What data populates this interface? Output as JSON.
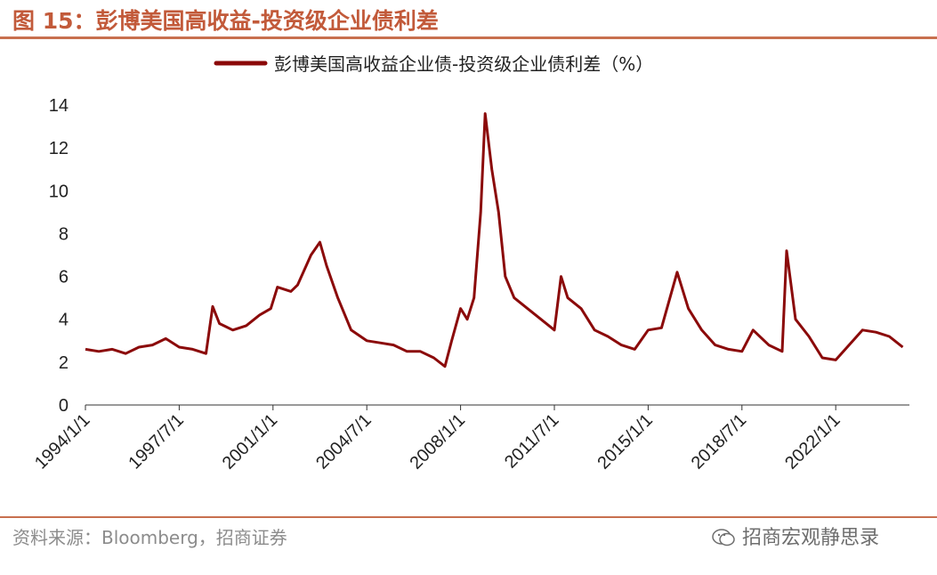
{
  "header": {
    "title": "图 15：彭博美国高收益-投资级企业债利差"
  },
  "footer": {
    "source": "资料来源：Bloomberg，招商证券",
    "watermark": "招商宏观静思录"
  },
  "colors": {
    "series": "#8b0a0a",
    "accent": "#c8704f"
  },
  "chart_data": {
    "type": "line",
    "title": "",
    "xlabel": "",
    "ylabel": "",
    "ylim": [
      0,
      14
    ],
    "yticks": [
      "0",
      "2",
      "4",
      "6",
      "8",
      "10",
      "12",
      "14"
    ],
    "xticks": [
      "1994/1/1",
      "1997/7/1",
      "2001/1/1",
      "2004/7/1",
      "2008/1/1",
      "2011/7/1",
      "2015/1/1",
      "2018/7/1",
      "2022/1/1"
    ],
    "legend_position": "top-center",
    "grid": false,
    "series": [
      {
        "name": "彭博美国高收益企业债-投资级企业债利差（%）",
        "x": [
          "1994/1",
          "1994/7",
          "1995/1",
          "1995/7",
          "1996/1",
          "1996/7",
          "1997/1",
          "1997/7",
          "1998/1",
          "1998/7",
          "1998/10",
          "1999/1",
          "1999/7",
          "2000/1",
          "2000/7",
          "2000/12",
          "2001/3",
          "2001/9",
          "2001/12",
          "2002/6",
          "2002/10",
          "2003/1",
          "2003/6",
          "2003/12",
          "2004/7",
          "2005/1",
          "2005/7",
          "2006/1",
          "2006/7",
          "2007/1",
          "2007/6",
          "2007/9",
          "2008/1",
          "2008/4",
          "2008/7",
          "2008/10",
          "2008/12",
          "2009/3",
          "2009/6",
          "2009/9",
          "2010/1",
          "2010/7",
          "2011/1",
          "2011/7",
          "2011/10",
          "2012/1",
          "2012/7",
          "2013/1",
          "2013/7",
          "2014/1",
          "2014/7",
          "2015/1",
          "2015/7",
          "2016/2",
          "2016/7",
          "2017/1",
          "2017/7",
          "2018/1",
          "2018/7",
          "2018/12",
          "2019/7",
          "2020/1",
          "2020/3",
          "2020/7",
          "2021/1",
          "2021/7",
          "2022/1",
          "2022/7",
          "2023/1",
          "2023/7",
          "2024/1",
          "2024/7"
        ],
        "values": [
          2.6,
          2.5,
          2.6,
          2.4,
          2.7,
          2.8,
          3.1,
          2.7,
          2.6,
          2.4,
          4.6,
          3.8,
          3.5,
          3.7,
          4.2,
          4.5,
          5.5,
          5.3,
          5.6,
          7.0,
          7.6,
          6.5,
          5.0,
          3.5,
          3.0,
          2.9,
          2.8,
          2.5,
          2.5,
          2.2,
          1.8,
          3.0,
          4.5,
          4.0,
          5.0,
          9.0,
          13.6,
          11.0,
          9.0,
          6.0,
          5.0,
          4.5,
          4.0,
          3.5,
          6.0,
          5.0,
          4.5,
          3.5,
          3.2,
          2.8,
          2.6,
          3.5,
          3.6,
          6.2,
          4.5,
          3.5,
          2.8,
          2.6,
          2.5,
          3.5,
          2.8,
          2.5,
          7.2,
          4.0,
          3.2,
          2.2,
          2.1,
          2.8,
          3.5,
          3.4,
          3.2,
          2.7
        ]
      }
    ]
  }
}
